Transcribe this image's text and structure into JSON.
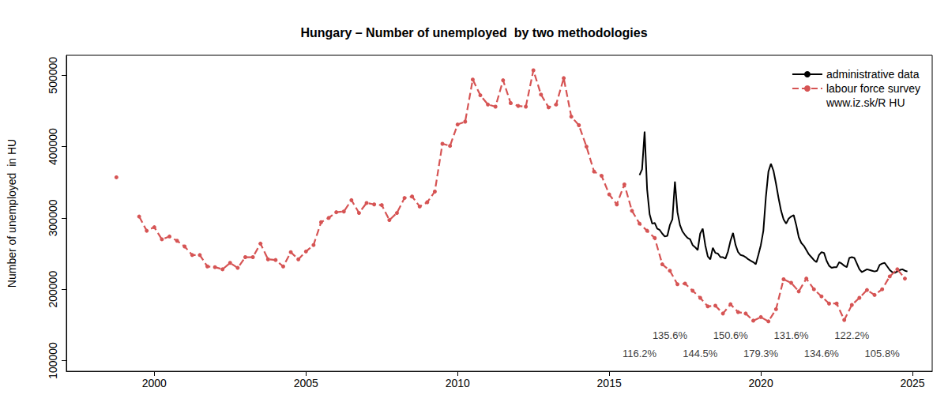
{
  "chart_data": {
    "type": "line",
    "title": "Hungary – Number of unemployed  by two methodologies",
    "y_label": "Number of unemployed  in HU",
    "xlim": [
      1997.1,
      2025.65
    ],
    "xticks": [
      2000,
      2005,
      2010,
      2015,
      2020,
      2025
    ],
    "ylim": [
      85000,
      528000
    ],
    "yticks": [
      100000,
      200000,
      300000,
      400000,
      500000
    ],
    "grid": false,
    "legend": "top-right",
    "source": "www.iz.sk/R HU",
    "series": [
      {
        "name": "administrative data",
        "color": "#000000",
        "line_style": "solid",
        "marker": "none",
        "x": [
          2016,
          2016.083,
          2016.167,
          2016.25,
          2016.333,
          2016.417,
          2016.5,
          2016.583,
          2016.667,
          2016.75,
          2016.833,
          2016.917,
          2017,
          2017.083,
          2017.167,
          2017.25,
          2017.333,
          2017.417,
          2017.5,
          2017.583,
          2017.667,
          2017.75,
          2017.833,
          2017.917,
          2018,
          2018.083,
          2018.167,
          2018.25,
          2018.333,
          2018.417,
          2018.5,
          2018.583,
          2018.667,
          2018.75,
          2018.833,
          2018.917,
          2019,
          2019.083,
          2019.167,
          2019.25,
          2019.333,
          2019.417,
          2019.5,
          2019.583,
          2019.667,
          2019.75,
          2019.833,
          2019.917,
          2020,
          2020.083,
          2020.167,
          2020.25,
          2020.333,
          2020.417,
          2020.5,
          2020.583,
          2020.667,
          2020.75,
          2020.833,
          2020.917,
          2021,
          2021.083,
          2021.167,
          2021.25,
          2021.333,
          2021.417,
          2021.5,
          2021.583,
          2021.667,
          2021.75,
          2021.833,
          2021.917,
          2022,
          2022.083,
          2022.167,
          2022.25,
          2022.333,
          2022.417,
          2022.5,
          2022.583,
          2022.667,
          2022.75,
          2022.833,
          2022.917,
          2023,
          2023.083,
          2023.167,
          2023.25,
          2023.333,
          2023.417,
          2023.5,
          2023.583,
          2023.667,
          2023.75,
          2023.833,
          2023.917,
          2024,
          2024.083,
          2024.167,
          2024.25,
          2024.333,
          2024.417,
          2024.5,
          2024.583,
          2024.667,
          2024.75,
          2024.833
        ],
        "values": [
          360000,
          368000,
          421000,
          340000,
          305000,
          292000,
          293000,
          285000,
          283000,
          278000,
          274000,
          275000,
          290000,
          298000,
          351000,
          308000,
          290000,
          281000,
          276000,
          272000,
          270000,
          262000,
          259000,
          255000,
          278000,
          285000,
          262000,
          246000,
          242000,
          258000,
          251000,
          250000,
          245000,
          245000,
          243000,
          253000,
          268000,
          279000,
          262000,
          252000,
          248000,
          247000,
          245000,
          242000,
          240000,
          238000,
          235000,
          248000,
          262000,
          282000,
          330000,
          365000,
          376000,
          366000,
          348000,
          328000,
          310000,
          298000,
          292000,
          299000,
          302000,
          304000,
          290000,
          273000,
          265000,
          261000,
          255000,
          249000,
          245000,
          241000,
          238000,
          248000,
          252000,
          251000,
          240000,
          233000,
          230000,
          231000,
          231000,
          238000,
          236000,
          233000,
          231000,
          244000,
          245000,
          244000,
          236000,
          228000,
          224000,
          226000,
          228000,
          227000,
          226000,
          225000,
          226000,
          234000,
          236000,
          237000,
          232000,
          227000,
          224000,
          223000,
          225000,
          227000,
          228000,
          226000,
          225000
        ]
      },
      {
        "name": "labour force survey",
        "color": "#d65454",
        "line_style": "dashed",
        "marker": "circle",
        "x": [
          1998.75,
          1999,
          1999.25,
          1999.5,
          1999.75,
          2000,
          2000.25,
          2000.5,
          2000.75,
          2001,
          2001.25,
          2001.5,
          2001.75,
          2002,
          2002.25,
          2002.5,
          2002.75,
          2003,
          2003.25,
          2003.5,
          2003.75,
          2004,
          2004.25,
          2004.5,
          2004.75,
          2005,
          2005.25,
          2005.5,
          2005.75,
          2006,
          2006.25,
          2006.5,
          2006.75,
          2007,
          2007.25,
          2007.5,
          2007.75,
          2008,
          2008.25,
          2008.5,
          2008.75,
          2009,
          2009.25,
          2009.5,
          2009.75,
          2010,
          2010.25,
          2010.5,
          2010.75,
          2011,
          2011.25,
          2011.5,
          2011.75,
          2012,
          2012.25,
          2012.5,
          2012.75,
          2013,
          2013.25,
          2013.5,
          2013.75,
          2014,
          2014.25,
          2014.5,
          2014.75,
          2015,
          2015.25,
          2015.5,
          2015.75,
          2016,
          2016.25,
          2016.5,
          2016.75,
          2017,
          2017.25,
          2017.5,
          2017.75,
          2018,
          2018.25,
          2018.5,
          2018.75,
          2019,
          2019.25,
          2019.5,
          2019.75,
          2020,
          2020.25,
          2020.5,
          2020.75,
          2021,
          2021.25,
          2021.5,
          2021.75,
          2022,
          2022.25,
          2022.5,
          2022.75,
          2023,
          2023.25,
          2023.5,
          2023.75,
          2024,
          2024.25,
          2024.5,
          2024.75
        ],
        "values": [
          357000,
          null,
          null,
          302000,
          282000,
          287000,
          270000,
          274000,
          268000,
          260000,
          248000,
          248000,
          232000,
          231000,
          228000,
          237000,
          230000,
          245000,
          245000,
          264000,
          242000,
          241000,
          232000,
          252000,
          242000,
          253000,
          262000,
          294000,
          300000,
          308000,
          309000,
          325000,
          307000,
          321000,
          319000,
          318000,
          297000,
          307000,
          328000,
          330000,
          316000,
          322000,
          337000,
          404000,
          401000,
          431000,
          435000,
          494000,
          472000,
          459000,
          456000,
          493000,
          461000,
          457000,
          456000,
          507000,
          473000,
          455000,
          459000,
          496000,
          442000,
          430000,
          400000,
          365000,
          359000,
          333000,
          319000,
          347000,
          310000,
          292000,
          282000,
          272000,
          235000,
          226000,
          207000,
          208000,
          198000,
          188000,
          176000,
          177000,
          166000,
          179000,
          168000,
          166000,
          156000,
          161000,
          155000,
          172000,
          214000,
          209000,
          197000,
          215000,
          200000,
          190000,
          180000,
          180000,
          157000,
          178000,
          188000,
          199000,
          192000,
          200000,
          218000,
          228000,
          215000
        ]
      }
    ],
    "annotations": [
      {
        "x": 2016,
        "y": 110000,
        "text": "116.2%"
      },
      {
        "x": 2017,
        "y": 135000,
        "text": "135.6%"
      },
      {
        "x": 2018,
        "y": 110000,
        "text": "144.5%"
      },
      {
        "x": 2019,
        "y": 135000,
        "text": "150.6%"
      },
      {
        "x": 2020,
        "y": 110000,
        "text": "179.3%"
      },
      {
        "x": 2021,
        "y": 135000,
        "text": "131.6%"
      },
      {
        "x": 2022,
        "y": 110000,
        "text": "134.6%"
      },
      {
        "x": 2023,
        "y": 135000,
        "text": "122.2%"
      },
      {
        "x": 2024,
        "y": 110000,
        "text": "105.8%"
      }
    ]
  }
}
